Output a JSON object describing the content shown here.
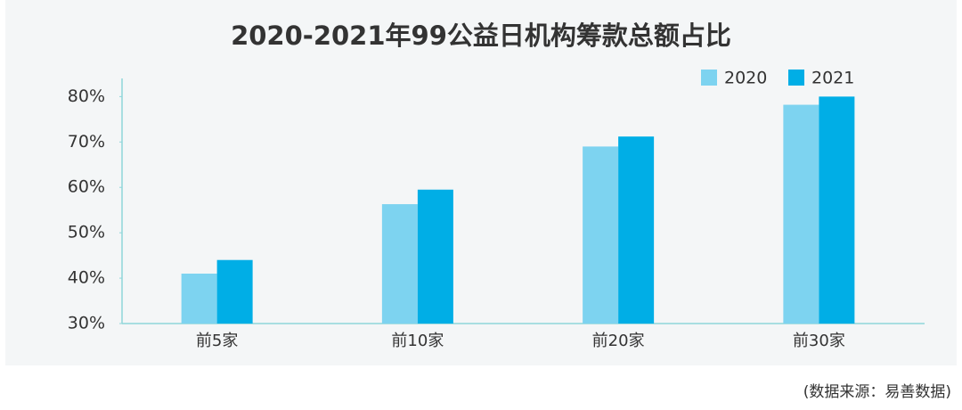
{
  "chart_data": {
    "type": "bar",
    "title": "2020-2021年99公益日机构筹款总额占比",
    "categories": [
      "前5家",
      "前10家",
      "前20家",
      "前30家"
    ],
    "series": [
      {
        "name": "2020",
        "color": "#7dd3f0",
        "values": [
          41,
          56.3,
          69,
          78.2
        ]
      },
      {
        "name": "2021",
        "color": "#00aee6",
        "values": [
          44,
          59.5,
          71.2,
          80
        ]
      }
    ],
    "ylim": [
      30,
      84
    ],
    "yticks": [
      {
        "value": 30,
        "label": "30%"
      },
      {
        "value": 40,
        "label": "40%"
      },
      {
        "value": 50,
        "label": "50%"
      },
      {
        "value": 60,
        "label": "60%"
      },
      {
        "value": 70,
        "label": "70%"
      },
      {
        "value": 80,
        "label": "80%"
      }
    ],
    "grid": false,
    "legend": "top-right",
    "source": "(数据来源：易善数据)"
  }
}
